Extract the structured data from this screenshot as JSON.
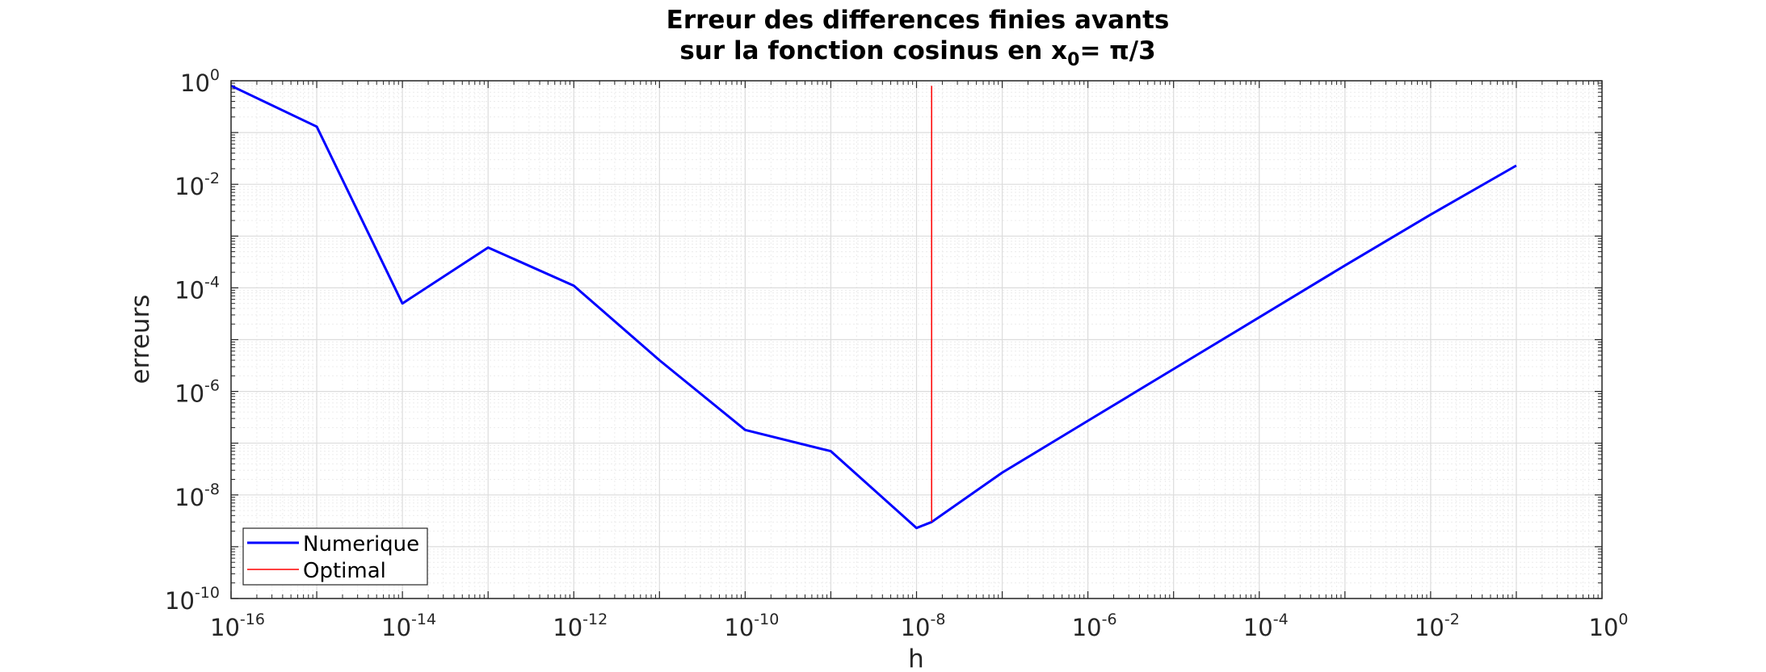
{
  "chart_data": {
    "type": "line",
    "title_line1": "Erreur des differences finies avants",
    "title_line2_prefix": "sur la fonction cosinus en x",
    "title_line2_subscript": "0",
    "title_line2_suffix": "= π/3",
    "xlabel": "h",
    "ylabel": "erreurs",
    "x_scale": "log",
    "y_scale": "log",
    "xlim": [
      1e-16,
      1
    ],
    "ylim": [
      1e-10,
      1
    ],
    "grid": true,
    "minor_grid": true,
    "legend_position": "bottom-left",
    "x_tick_labels": [
      {
        "base": "10",
        "exp": "-16"
      },
      {
        "base": "10",
        "exp": "-14"
      },
      {
        "base": "10",
        "exp": "-12"
      },
      {
        "base": "10",
        "exp": "-10"
      },
      {
        "base": "10",
        "exp": "-8"
      },
      {
        "base": "10",
        "exp": "-6"
      },
      {
        "base": "10",
        "exp": "-4"
      },
      {
        "base": "10",
        "exp": "-2"
      },
      {
        "base": "10",
        "exp": "0"
      }
    ],
    "y_tick_labels": [
      {
        "base": "10",
        "exp": "0"
      },
      {
        "base": "10",
        "exp": "-2"
      },
      {
        "base": "10",
        "exp": "-4"
      },
      {
        "base": "10",
        "exp": "-6"
      },
      {
        "base": "10",
        "exp": "-8"
      },
      {
        "base": "10",
        "exp": "-10"
      }
    ],
    "series": [
      {
        "name": "Numerique",
        "color": "#0000ff",
        "x": [
          1e-16,
          1e-15,
          1e-14,
          1e-13,
          1e-12,
          1e-11,
          1e-10,
          1e-09,
          1e-08,
          1.5e-08,
          1e-07,
          1e-06,
          1e-05,
          0.0001,
          0.001,
          0.01,
          0.1
        ],
        "y": [
          0.8,
          0.13,
          5e-05,
          0.0006,
          0.00011,
          4e-06,
          1.8e-07,
          7e-08,
          2.3e-09,
          3e-09,
          2.7e-08,
          2.7e-07,
          2.7e-06,
          2.7e-05,
          0.00027,
          0.0026,
          0.023
        ]
      },
      {
        "name": "Optimal",
        "color": "#ff0000",
        "x": [
          1.5e-08,
          1.5e-08
        ],
        "y": [
          3e-09,
          0.8
        ]
      }
    ]
  }
}
